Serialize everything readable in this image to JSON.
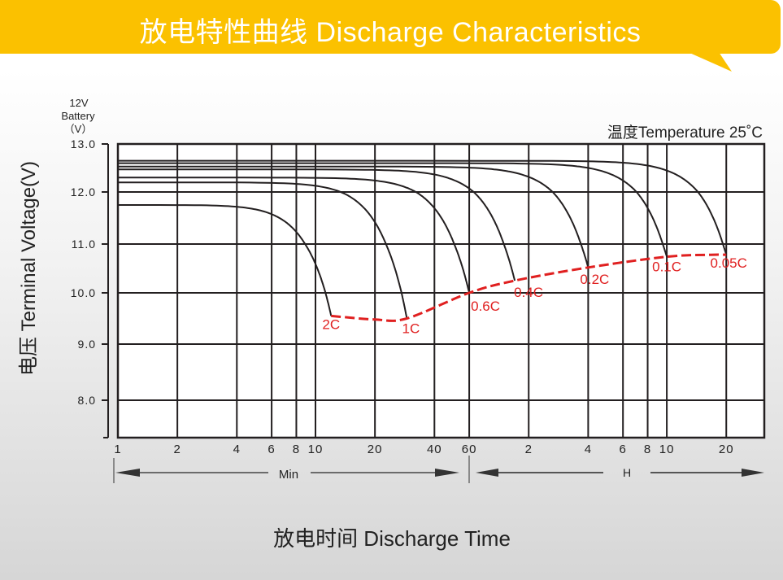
{
  "header": {
    "title": "放电特性曲线 Discharge Characteristics"
  },
  "colors": {
    "banner": "#fbc100",
    "cutoff_line": "#e02020",
    "curves": "#231f20"
  },
  "chart_data": {
    "type": "line",
    "title": "",
    "battery_label": [
      "12V",
      "Battery",
      "（V）"
    ],
    "temperature_note": "温度Temperature 25˚C",
    "ylabel": "电压 Terminal Voltage(V)",
    "xlabel": "放电时间 Discharge Time",
    "x_scale": "log",
    "x_unit_min_label": "Min",
    "x_unit_hour_label": "H",
    "ylim": [
      7.3,
      13.0
    ],
    "yticks": [
      "13.0",
      "12.0",
      "11.0",
      "10.0",
      "9.0",
      "8.0"
    ],
    "xticks_min": [
      "1",
      "2",
      "4",
      "6",
      "8",
      "10",
      "20",
      "40",
      "60"
    ],
    "xticks_hour": [
      "2",
      "4",
      "6",
      "8",
      "10",
      "20"
    ],
    "grid": true,
    "series": [
      {
        "name": "0.05C",
        "start_voltage": 12.65,
        "end_time_min": 1200,
        "end_voltage": 10.78
      },
      {
        "name": "0.1C",
        "start_voltage": 12.6,
        "end_time_min": 600,
        "end_voltage": 10.74
      },
      {
        "name": "0.2C",
        "start_voltage": 12.53,
        "end_time_min": 240,
        "end_voltage": 10.52
      },
      {
        "name": "0.4C",
        "start_voltage": 12.47,
        "end_time_min": 102,
        "end_voltage": 10.25
      },
      {
        "name": "0.6C",
        "start_voltage": 12.3,
        "end_time_min": 60,
        "end_voltage": 10.0
      },
      {
        "name": "1C",
        "start_voltage": 12.2,
        "end_time_min": 29,
        "end_voltage": 9.5
      },
      {
        "name": "2C",
        "start_voltage": 11.75,
        "end_time_min": 12,
        "end_voltage": 9.55
      }
    ],
    "cutoff_line": {
      "x_min": [
        12,
        20,
        29,
        60,
        102,
        240,
        600,
        1000,
        1200
      ],
      "y": [
        9.55,
        9.48,
        9.5,
        10.0,
        10.25,
        10.52,
        10.74,
        10.78,
        10.78
      ]
    }
  }
}
